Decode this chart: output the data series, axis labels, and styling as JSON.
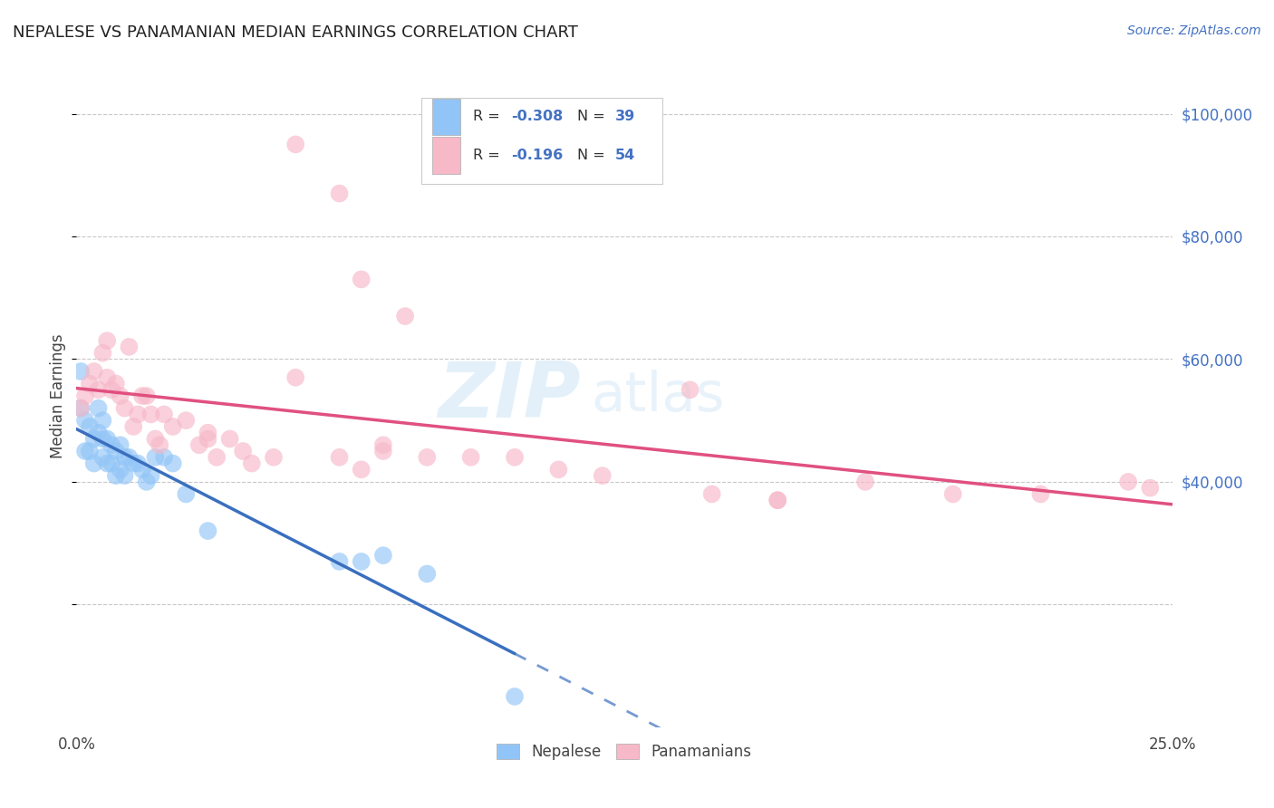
{
  "title": "NEPALESE VS PANAMANIAN MEDIAN EARNINGS CORRELATION CHART",
  "source": "Source: ZipAtlas.com",
  "ylabel": "Median Earnings",
  "xlim": [
    0.0,
    0.25
  ],
  "ylim": [
    0,
    108000
  ],
  "blue_color": "#92c5f7",
  "pink_color": "#f7b8c8",
  "blue_line_color": "#3a6fbf",
  "pink_line_color": "#e05080",
  "watermark_zip": "ZIP",
  "watermark_atlas": "atlas",
  "nepalese_x": [
    0.001,
    0.001,
    0.002,
    0.002,
    0.003,
    0.003,
    0.004,
    0.004,
    0.005,
    0.005,
    0.006,
    0.006,
    0.006,
    0.007,
    0.007,
    0.008,
    0.008,
    0.009,
    0.009,
    0.01,
    0.01,
    0.011,
    0.011,
    0.012,
    0.013,
    0.014,
    0.015,
    0.016,
    0.017,
    0.018,
    0.02,
    0.022,
    0.025,
    0.03,
    0.06,
    0.065,
    0.07,
    0.08,
    0.1
  ],
  "nepalese_y": [
    58000,
    52000,
    50000,
    45000,
    49000,
    45000,
    47000,
    43000,
    52000,
    48000,
    50000,
    47000,
    44000,
    47000,
    43000,
    46000,
    43000,
    45000,
    41000,
    46000,
    42000,
    44000,
    41000,
    44000,
    43000,
    43000,
    42000,
    40000,
    41000,
    44000,
    44000,
    43000,
    38000,
    32000,
    27000,
    27000,
    28000,
    25000,
    5000
  ],
  "panamanian_x": [
    0.001,
    0.002,
    0.003,
    0.004,
    0.005,
    0.006,
    0.007,
    0.007,
    0.008,
    0.009,
    0.01,
    0.011,
    0.012,
    0.013,
    0.014,
    0.015,
    0.016,
    0.017,
    0.018,
    0.019,
    0.02,
    0.022,
    0.025,
    0.028,
    0.03,
    0.032,
    0.035,
    0.038,
    0.04,
    0.045,
    0.05,
    0.06,
    0.065,
    0.07,
    0.08,
    0.09,
    0.1,
    0.11,
    0.12,
    0.14,
    0.16,
    0.18,
    0.2,
    0.22,
    0.24,
    0.245,
    0.05,
    0.06,
    0.065,
    0.075,
    0.145,
    0.16,
    0.07,
    0.03
  ],
  "panamanian_y": [
    52000,
    54000,
    56000,
    58000,
    55000,
    61000,
    63000,
    57000,
    55000,
    56000,
    54000,
    52000,
    62000,
    49000,
    51000,
    54000,
    54000,
    51000,
    47000,
    46000,
    51000,
    49000,
    50000,
    46000,
    47000,
    44000,
    47000,
    45000,
    43000,
    44000,
    57000,
    44000,
    42000,
    45000,
    44000,
    44000,
    44000,
    42000,
    41000,
    55000,
    37000,
    40000,
    38000,
    38000,
    40000,
    39000,
    95000,
    87000,
    73000,
    67000,
    38000,
    37000,
    46000,
    48000
  ],
  "bg_color": "#ffffff",
  "grid_color": "#c8c8c8"
}
